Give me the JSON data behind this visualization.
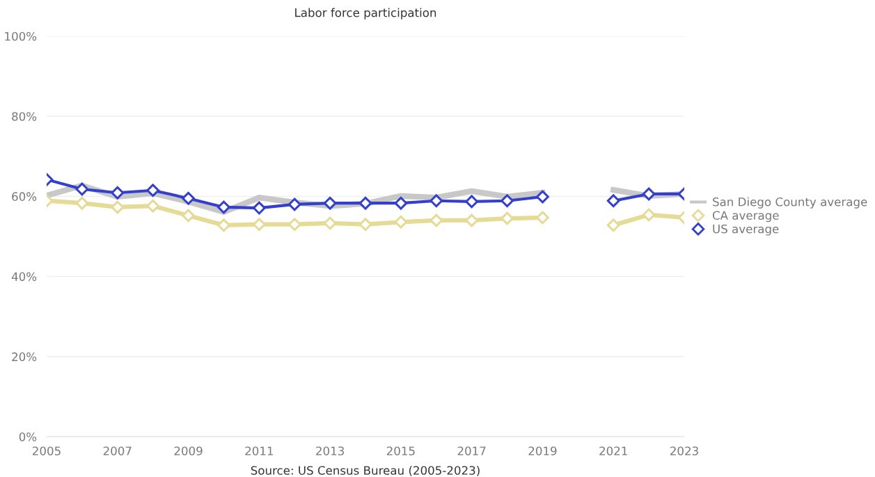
{
  "chart_data": {
    "type": "line",
    "title": "Labor force participation",
    "x": [
      2005,
      2006,
      2007,
      2008,
      2009,
      2010,
      2011,
      2012,
      2013,
      2014,
      2015,
      2016,
      2017,
      2018,
      2019,
      2020,
      2021,
      2022,
      2023
    ],
    "series": [
      {
        "name": "San Diego County average",
        "color": "#c8c8c8",
        "marker": "none",
        "values": [
          60.2,
          62.7,
          59.9,
          60.8,
          58.7,
          56.1,
          59.7,
          58.5,
          57.6,
          58.2,
          60.1,
          59.7,
          61.3,
          59.9,
          60.9,
          null,
          61.6,
          60.1,
          60.6
        ]
      },
      {
        "name": "CA average",
        "color": "#e6db96",
        "marker": "diamond",
        "values": [
          58.9,
          58.3,
          57.3,
          57.6,
          55.2,
          52.8,
          53.0,
          53.0,
          53.3,
          53.0,
          53.6,
          54.0,
          54.0,
          54.5,
          54.7,
          null,
          52.8,
          55.4,
          54.7
        ]
      },
      {
        "name": "US average",
        "color": "#3440cc",
        "marker": "diamond",
        "values": [
          64.2,
          61.8,
          60.9,
          61.5,
          59.5,
          57.3,
          57.1,
          58.0,
          58.3,
          58.3,
          58.3,
          58.9,
          58.7,
          58.9,
          59.9,
          null,
          58.9,
          60.6,
          60.6
        ]
      }
    ],
    "xlim": [
      2005,
      2023
    ],
    "xticks": [
      2005,
      2007,
      2009,
      2011,
      2013,
      2015,
      2017,
      2019,
      2021,
      2023
    ],
    "ylim": [
      0,
      100
    ],
    "yticks": [
      {
        "value": 0,
        "label": "0%"
      },
      {
        "value": 20,
        "label": "20%"
      },
      {
        "value": 40,
        "label": "40%"
      },
      {
        "value": 60,
        "label": "60%"
      },
      {
        "value": 80,
        "label": "80%"
      },
      {
        "value": 100,
        "label": "100%"
      }
    ],
    "grid": "y",
    "legend": "right",
    "line_style": "solid",
    "annotations": [
      "Source: US Census Bureau (2005-2023)"
    ]
  }
}
